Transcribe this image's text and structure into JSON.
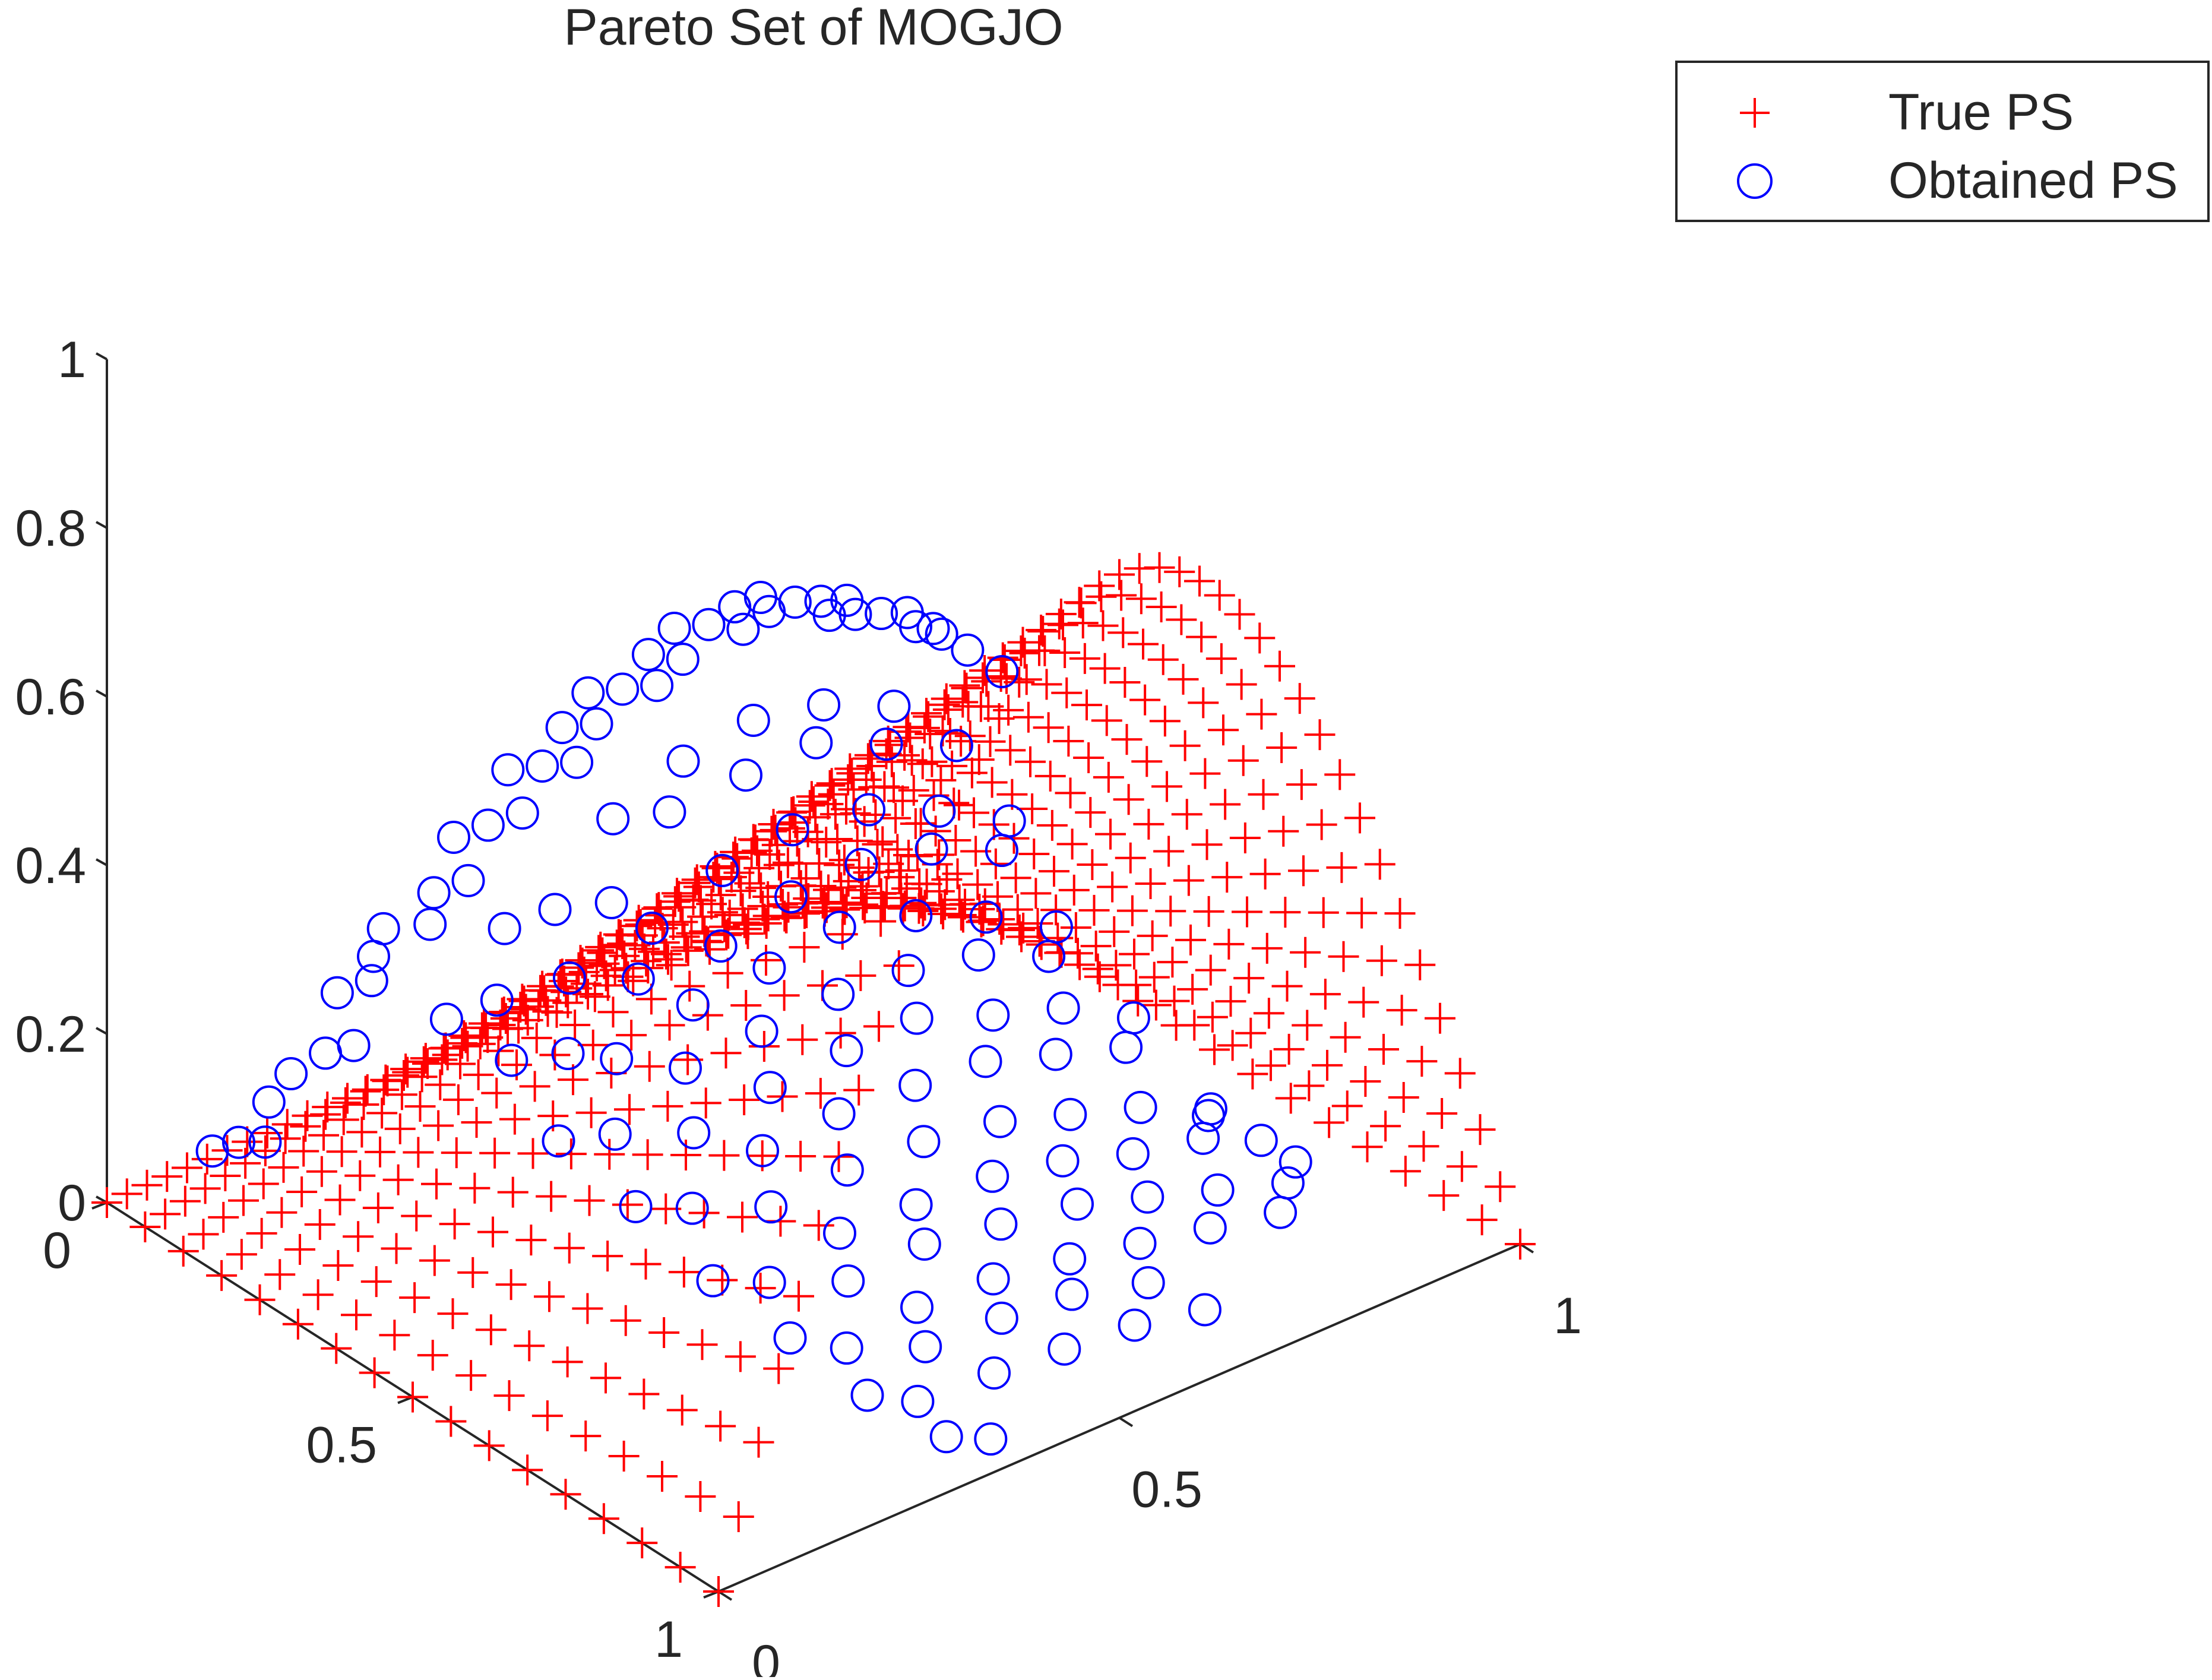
{
  "chart_data": {
    "type": "scatter3d",
    "title": "Pareto Set of MOGJO",
    "axes": {
      "x": {
        "range": [
          0,
          1
        ],
        "ticks": [
          0,
          0.5,
          1
        ],
        "tick_labels": [
          "0",
          "0.5",
          "1"
        ]
      },
      "y": {
        "range": [
          0,
          1
        ],
        "ticks": [
          0,
          0.5,
          1
        ],
        "tick_labels": [
          "0",
          "0.5",
          "1"
        ]
      },
      "z": {
        "range": [
          0,
          1
        ],
        "ticks": [
          0,
          0.2,
          0.4,
          0.6,
          0.8,
          1
        ],
        "tick_labels": [
          "0",
          "0.2",
          "0.4",
          "0.6",
          "0.8",
          "1"
        ]
      }
    },
    "grid": false,
    "legend": {
      "placement": "top-right",
      "entries": [
        {
          "label": "True PS",
          "marker": "plus",
          "color": "#ff0000"
        },
        {
          "label": "Obtained PS",
          "marker": "circle",
          "color": "#0000ff"
        }
      ]
    },
    "series": [
      {
        "name": "True PS",
        "marker": "plus",
        "color": "#ff0000",
        "surface": "x3 = sin(pi * x1) * t, t = x2 in [0,1], sampled on a regular grid (x1 step 0.025, x2 step 0.0625)",
        "grid": {
          "x1_steps": 41,
          "x2_steps": 17
        }
      },
      {
        "name": "Obtained PS",
        "marker": "circle",
        "color": "#0000ff",
        "points": [
          [
            0.04,
            0.12,
            0.1
          ],
          [
            0.05,
            0.15,
            0.12
          ],
          [
            0.06,
            0.18,
            0.13
          ],
          [
            0.08,
            0.16,
            0.16
          ],
          [
            0.1,
            0.17,
            0.19
          ],
          [
            0.12,
            0.2,
            0.22
          ],
          [
            0.14,
            0.22,
            0.23
          ],
          [
            0.15,
            0.18,
            0.27
          ],
          [
            0.17,
            0.21,
            0.29
          ],
          [
            0.18,
            0.2,
            0.31
          ],
          [
            0.2,
            0.19,
            0.33
          ],
          [
            0.22,
            0.24,
            0.35
          ],
          [
            0.24,
            0.22,
            0.37
          ],
          [
            0.26,
            0.25,
            0.39
          ],
          [
            0.28,
            0.2,
            0.41
          ],
          [
            0.3,
            0.23,
            0.43
          ],
          [
            0.32,
            0.26,
            0.45
          ],
          [
            0.34,
            0.21,
            0.47
          ],
          [
            0.36,
            0.24,
            0.48
          ],
          [
            0.38,
            0.27,
            0.49
          ],
          [
            0.4,
            0.22,
            0.5
          ],
          [
            0.42,
            0.25,
            0.51
          ],
          [
            0.44,
            0.21,
            0.52
          ],
          [
            0.46,
            0.24,
            0.53
          ],
          [
            0.48,
            0.27,
            0.54
          ],
          [
            0.5,
            0.23,
            0.55
          ],
          [
            0.52,
            0.26,
            0.55
          ],
          [
            0.54,
            0.22,
            0.56
          ],
          [
            0.56,
            0.25,
            0.57
          ],
          [
            0.58,
            0.28,
            0.57
          ],
          [
            0.6,
            0.24,
            0.57
          ],
          [
            0.62,
            0.27,
            0.57
          ],
          [
            0.64,
            0.23,
            0.56
          ],
          [
            0.66,
            0.26,
            0.56
          ],
          [
            0.68,
            0.29,
            0.55
          ],
          [
            0.7,
            0.25,
            0.54
          ],
          [
            0.72,
            0.28,
            0.53
          ],
          [
            0.74,
            0.24,
            0.52
          ],
          [
            0.76,
            0.27,
            0.51
          ],
          [
            0.78,
            0.3,
            0.5
          ],
          [
            0.8,
            0.26,
            0.49
          ],
          [
            0.82,
            0.29,
            0.47
          ],
          [
            0.84,
            0.25,
            0.45
          ],
          [
            0.86,
            0.28,
            0.43
          ],
          [
            0.88,
            0.31,
            0.41
          ],
          [
            0.21,
            0.28,
            0.26
          ],
          [
            0.25,
            0.31,
            0.28
          ],
          [
            0.29,
            0.27,
            0.33
          ],
          [
            0.33,
            0.3,
            0.35
          ],
          [
            0.37,
            0.34,
            0.36
          ],
          [
            0.41,
            0.29,
            0.42
          ],
          [
            0.45,
            0.33,
            0.43
          ],
          [
            0.49,
            0.3,
            0.46
          ],
          [
            0.53,
            0.35,
            0.45
          ],
          [
            0.57,
            0.31,
            0.48
          ],
          [
            0.61,
            0.36,
            0.46
          ],
          [
            0.65,
            0.32,
            0.47
          ],
          [
            0.69,
            0.37,
            0.43
          ],
          [
            0.73,
            0.33,
            0.44
          ],
          [
            0.77,
            0.38,
            0.4
          ],
          [
            0.23,
            0.36,
            0.24
          ],
          [
            0.27,
            0.4,
            0.25
          ],
          [
            0.31,
            0.35,
            0.3
          ],
          [
            0.35,
            0.41,
            0.31
          ],
          [
            0.39,
            0.38,
            0.34
          ],
          [
            0.43,
            0.44,
            0.33
          ],
          [
            0.47,
            0.39,
            0.38
          ],
          [
            0.51,
            0.45,
            0.36
          ],
          [
            0.55,
            0.4,
            0.4
          ],
          [
            0.59,
            0.46,
            0.37
          ],
          [
            0.63,
            0.42,
            0.4
          ],
          [
            0.67,
            0.47,
            0.36
          ],
          [
            0.71,
            0.43,
            0.37
          ],
          [
            0.75,
            0.48,
            0.33
          ],
          [
            0.79,
            0.44,
            0.33
          ],
          [
            0.22,
            0.45,
            0.19
          ],
          [
            0.26,
            0.49,
            0.2
          ],
          [
            0.3,
            0.44,
            0.25
          ],
          [
            0.34,
            0.5,
            0.25
          ],
          [
            0.38,
            0.46,
            0.29
          ],
          [
            0.42,
            0.52,
            0.27
          ],
          [
            0.46,
            0.48,
            0.31
          ],
          [
            0.5,
            0.54,
            0.29
          ],
          [
            0.54,
            0.49,
            0.33
          ],
          [
            0.58,
            0.55,
            0.29
          ],
          [
            0.62,
            0.51,
            0.32
          ],
          [
            0.66,
            0.56,
            0.28
          ],
          [
            0.7,
            0.52,
            0.29
          ],
          [
            0.74,
            0.57,
            0.25
          ],
          [
            0.78,
            0.53,
            0.25
          ],
          [
            0.24,
            0.55,
            0.15
          ],
          [
            0.28,
            0.59,
            0.15
          ],
          [
            0.32,
            0.54,
            0.2
          ],
          [
            0.36,
            0.6,
            0.19
          ],
          [
            0.4,
            0.56,
            0.23
          ],
          [
            0.44,
            0.62,
            0.21
          ],
          [
            0.48,
            0.58,
            0.25
          ],
          [
            0.52,
            0.64,
            0.22
          ],
          [
            0.56,
            0.59,
            0.26
          ],
          [
            0.6,
            0.65,
            0.22
          ],
          [
            0.64,
            0.61,
            0.24
          ],
          [
            0.68,
            0.66,
            0.2
          ],
          [
            0.72,
            0.62,
            0.22
          ],
          [
            0.76,
            0.67,
            0.18
          ],
          [
            0.8,
            0.63,
            0.18
          ],
          [
            0.26,
            0.65,
            0.1
          ],
          [
            0.3,
            0.69,
            0.1
          ],
          [
            0.34,
            0.64,
            0.15
          ],
          [
            0.38,
            0.7,
            0.13
          ],
          [
            0.42,
            0.66,
            0.17
          ],
          [
            0.46,
            0.72,
            0.14
          ],
          [
            0.5,
            0.68,
            0.18
          ],
          [
            0.54,
            0.74,
            0.15
          ],
          [
            0.58,
            0.7,
            0.18
          ],
          [
            0.62,
            0.75,
            0.14
          ],
          [
            0.66,
            0.71,
            0.16
          ],
          [
            0.7,
            0.76,
            0.12
          ],
          [
            0.74,
            0.72,
            0.14
          ],
          [
            0.78,
            0.77,
            0.11
          ],
          [
            0.82,
            0.73,
            0.11
          ],
          [
            0.28,
            0.75,
            0.07
          ],
          [
            0.32,
            0.79,
            0.06
          ],
          [
            0.36,
            0.74,
            0.1
          ],
          [
            0.4,
            0.8,
            0.08
          ],
          [
            0.44,
            0.76,
            0.12
          ],
          [
            0.48,
            0.82,
            0.09
          ],
          [
            0.52,
            0.78,
            0.12
          ],
          [
            0.56,
            0.84,
            0.09
          ],
          [
            0.6,
            0.8,
            0.12
          ],
          [
            0.64,
            0.85,
            0.08
          ],
          [
            0.68,
            0.81,
            0.1
          ],
          [
            0.72,
            0.86,
            0.07
          ],
          [
            0.76,
            0.82,
            0.08
          ],
          [
            0.8,
            0.87,
            0.06
          ],
          [
            0.84,
            0.83,
            0.06
          ],
          [
            0.88,
            0.79,
            0.05
          ],
          [
            0.86,
            0.76,
            0.07
          ],
          [
            0.84,
            0.7,
            0.08
          ],
          [
            0.3,
            0.85,
            0.04
          ],
          [
            0.34,
            0.88,
            0.03
          ],
          [
            0.38,
            0.84,
            0.06
          ],
          [
            0.42,
            0.9,
            0.04
          ],
          [
            0.46,
            0.86,
            0.07
          ],
          [
            0.5,
            0.91,
            0.04
          ],
          [
            0.54,
            0.87,
            0.07
          ],
          [
            0.58,
            0.92,
            0.04
          ],
          [
            0.62,
            0.89,
            0.06
          ],
          [
            0.66,
            0.93,
            0.03
          ],
          [
            0.33,
            0.94,
            0.02
          ],
          [
            0.37,
            0.96,
            0.01
          ]
        ]
      }
    ]
  }
}
